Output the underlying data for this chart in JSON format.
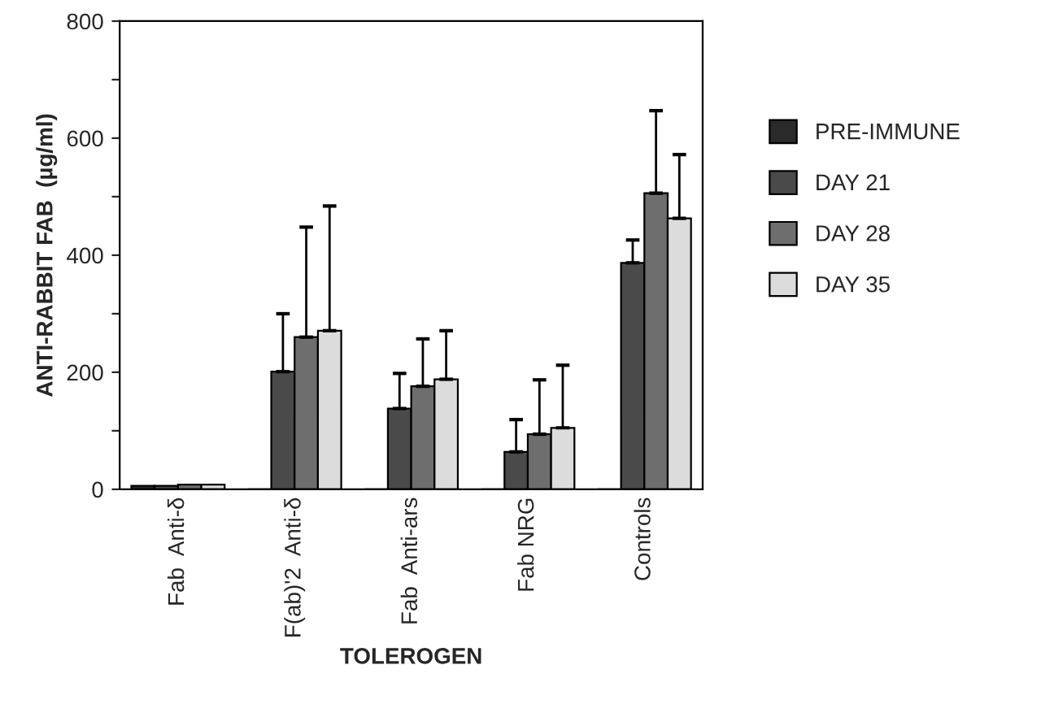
{
  "chart_data": {
    "type": "bar",
    "xlabel": "TOLEROGEN",
    "ylabel": "ANTI-RABBIT FAB  (µg/ml)",
    "categories": [
      "Fab  Anti-δ",
      "F(ab)'2  Anti-δ",
      "Fab  Anti-ars",
      "Fab NRG",
      "Controls"
    ],
    "series": [
      {
        "name": "PRE-IMMUNE",
        "color": "#2a2a2a",
        "values": [
          6,
          0,
          0,
          0,
          0
        ]
      },
      {
        "name": "DAY 21",
        "color": "#4a4a4a",
        "values": [
          6,
          201,
          138,
          64,
          387
        ],
        "errors": [
          null,
          [
            201,
            300
          ],
          [
            138,
            198
          ],
          [
            64,
            119
          ],
          [
            387,
            426
          ]
        ]
      },
      {
        "name": "DAY 28",
        "color": "#6e6e6e",
        "values": [
          8,
          260,
          176,
          94,
          506
        ],
        "errors": [
          null,
          [
            260,
            448
          ],
          [
            176,
            257
          ],
          [
            94,
            187
          ],
          [
            506,
            647
          ]
        ]
      },
      {
        "name": "DAY 35",
        "color": "#dcdcdc",
        "values": [
          8,
          271,
          188,
          105,
          463
        ],
        "errors": [
          null,
          [
            271,
            484
          ],
          [
            188,
            271
          ],
          [
            105,
            212
          ],
          [
            463,
            572
          ]
        ]
      }
    ],
    "ylim": [
      0,
      800
    ],
    "yticks": [
      0,
      {
        "value": 100,
        "label": null
      },
      200,
      {
        "value": 300,
        "label": null
      },
      400,
      {
        "value": 500,
        "label": null
      },
      600,
      {
        "value": 700,
        "label": null
      },
      800
    ],
    "grid": false,
    "legend": "right"
  }
}
